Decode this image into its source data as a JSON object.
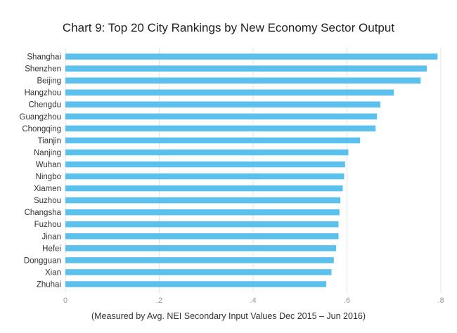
{
  "chart_data": {
    "type": "bar",
    "orientation": "horizontal",
    "title": "Chart 9: Top 20 City Rankings by New Economy Sector Output",
    "note": "(Measured by Avg. NEI Secondary Input Values Dec 2015 – Jun 2016)",
    "xlabel": "",
    "ylabel": "",
    "xlim": [
      0,
      0.8
    ],
    "x_ticks": [
      0,
      0.2,
      0.4,
      0.6,
      0.8
    ],
    "x_tick_labels": [
      "0",
      ".2",
      ".4",
      ".6",
      ".8"
    ],
    "grid": true,
    "bar_color": "#5bc0eb",
    "categories": [
      "Shanghai",
      "Shenzhen",
      "Beijing",
      "Hangzhou",
      "Chengdu",
      "Guangzhou",
      "Chongqing",
      "Tianjin",
      "Nanjing",
      "Wuhan",
      "Ningbo",
      "Xiamen",
      "Suzhou",
      "Changsha",
      "Fuzhou",
      "Jinan",
      "Hefei",
      "Dongguan",
      "Xian",
      "Zhuhai"
    ],
    "values": [
      0.793,
      0.77,
      0.757,
      0.7,
      0.671,
      0.664,
      0.661,
      0.628,
      0.603,
      0.596,
      0.594,
      0.591,
      0.586,
      0.584,
      0.582,
      0.582,
      0.577,
      0.572,
      0.567,
      0.556
    ]
  }
}
